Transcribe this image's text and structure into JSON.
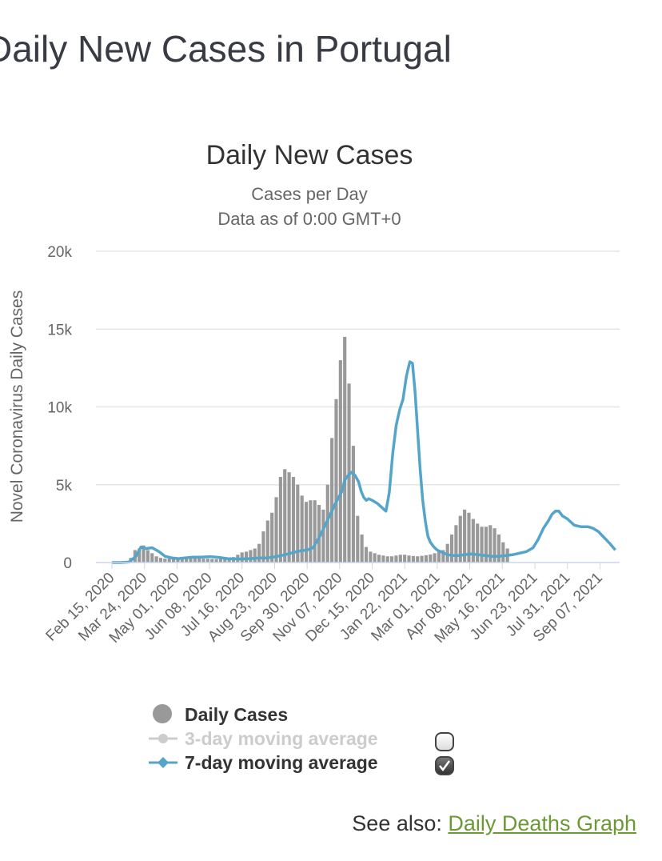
{
  "page": {
    "title": "Daily New Cases in Portugal",
    "see_also_label": "See also:",
    "see_also_link": "Daily Deaths Graph"
  },
  "legend": {
    "daily_cases": "Daily Cases",
    "ma3": "3-day moving average",
    "ma7": "7-day moving average",
    "ma3_checked": false,
    "ma7_checked": true
  },
  "colors": {
    "bars": "#999999",
    "ma7": "#55a4c9",
    "ma3_disabled": "#cccccc",
    "grid": "#e6e6e6",
    "link": "#6b9a34"
  },
  "chart_data": {
    "type": "bar",
    "title": "Daily New Cases",
    "subtitle": [
      "Cases per Day",
      "Data as of 0:00 GMT+0"
    ],
    "ylabel": "Novel Coronavirus Daily Cases",
    "xlabel": "",
    "ylim": [
      0,
      20000
    ],
    "yticks": [
      0,
      5000,
      10000,
      15000,
      20000
    ],
    "ytick_labels": [
      "0",
      "5k",
      "10k",
      "15k",
      "20k"
    ],
    "x_start": "2020-02-15",
    "x_end": "2021-09-30",
    "xtick_labels": [
      "Feb 15, 2020",
      "Mar 24, 2020",
      "May 01, 2020",
      "Jun 08, 2020",
      "Jul 16, 2020",
      "Aug 23, 2020",
      "Sep 30, 2020",
      "Nov 07, 2020",
      "Dec 15, 2020",
      "Jan 22, 2021",
      "Mar 01, 2021",
      "Apr 08, 2021",
      "May 16, 2021",
      "Jun 23, 2021",
      "Jul 31, 2021",
      "Sep 07, 2021"
    ],
    "xtick_day_offsets": [
      0,
      38,
      76,
      114,
      152,
      190,
      228,
      266,
      304,
      342,
      380,
      418,
      456,
      494,
      532,
      570
    ],
    "series": [
      {
        "name": "Daily Cases",
        "style": "bar",
        "interval_days": 5,
        "values": [
          0,
          0,
          0,
          50,
          300,
          800,
          900,
          1100,
          800,
          600,
          400,
          300,
          250,
          250,
          300,
          300,
          300,
          350,
          350,
          300,
          280,
          250,
          250,
          230,
          220,
          230,
          260,
          300,
          350,
          500,
          650,
          700,
          800,
          900,
          1200,
          2000,
          2700,
          3200,
          4200,
          5500,
          6000,
          5800,
          5500,
          5000,
          4300,
          3900,
          4000,
          4000,
          3700,
          3400,
          5000,
          8000,
          10500,
          13000,
          14500,
          11500,
          7500,
          3000,
          1800,
          1000,
          700,
          600,
          500,
          450,
          400,
          400,
          450,
          500,
          500,
          450,
          420,
          400,
          430,
          470,
          520,
          600,
          700,
          800,
          1200,
          1800,
          2400,
          3000,
          3400,
          3200,
          2800,
          2500,
          2300,
          2300,
          2400,
          2200,
          1800,
          1300,
          900
        ]
      },
      {
        "name": "7-day moving average",
        "style": "line",
        "day_offsets": [
          0,
          10,
          20,
          28,
          34,
          40,
          47,
          55,
          62,
          70,
          78,
          85,
          95,
          105,
          115,
          125,
          135,
          145,
          152,
          162,
          172,
          182,
          192,
          202,
          212,
          220,
          228,
          235,
          243,
          250,
          256,
          262,
          268,
          272,
          276,
          280,
          284,
          288,
          291,
          294,
          297,
          300,
          304,
          310,
          316,
          320,
          324,
          328,
          332,
          336,
          340,
          344,
          348,
          351,
          354,
          357,
          360,
          363,
          366,
          369,
          372,
          376,
          380,
          386,
          392,
          398,
          405,
          412,
          420,
          428,
          436,
          444,
          452,
          460,
          468,
          476,
          484,
          492,
          498,
          504,
          510,
          514,
          518,
          522,
          526,
          532,
          540,
          548,
          556,
          562,
          568,
          575,
          582,
          588
        ],
        "values": [
          0,
          0,
          30,
          400,
          1000,
          900,
          950,
          700,
          400,
          300,
          250,
          300,
          350,
          350,
          380,
          330,
          250,
          230,
          230,
          250,
          300,
          300,
          380,
          500,
          650,
          750,
          800,
          950,
          1700,
          2500,
          3200,
          3900,
          4500,
          5300,
          5600,
          5800,
          5600,
          5200,
          4600,
          4200,
          4000,
          4100,
          4000,
          3800,
          3500,
          3300,
          4500,
          7000,
          8800,
          9800,
          10500,
          12000,
          12900,
          12800,
          11000,
          8500,
          6000,
          4000,
          2700,
          1700,
          1300,
          1000,
          800,
          650,
          500,
          450,
          450,
          500,
          550,
          500,
          450,
          400,
          400,
          450,
          500,
          600,
          700,
          950,
          1500,
          2200,
          2700,
          3100,
          3300,
          3300,
          3000,
          2800,
          2400,
          2300,
          2300,
          2200,
          2000,
          1600,
          1200,
          800
        ]
      }
    ]
  }
}
